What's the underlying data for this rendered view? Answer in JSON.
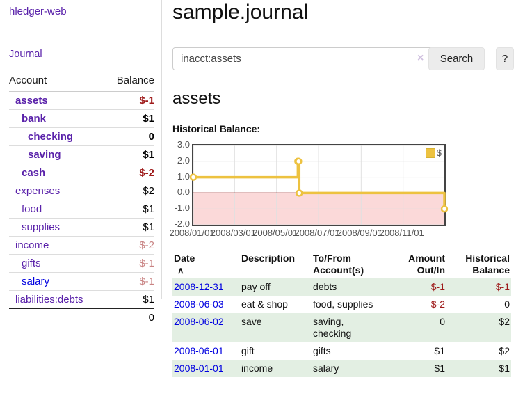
{
  "brand": "hledger-web",
  "nav": {
    "journal_label": "Journal"
  },
  "sidebar": {
    "header": {
      "account": "Account",
      "balance": "Balance"
    },
    "accounts": [
      {
        "name": "assets",
        "level": 1,
        "bold": true,
        "balance": "$-1",
        "tone": "neg",
        "blue": false
      },
      {
        "name": "bank",
        "level": 2,
        "bold": true,
        "balance": "$1",
        "tone": "pos",
        "blue": false
      },
      {
        "name": "checking",
        "level": 3,
        "bold": true,
        "balance": "0",
        "tone": "pos",
        "blue": false
      },
      {
        "name": "saving",
        "level": 3,
        "bold": true,
        "balance": "$1",
        "tone": "pos",
        "blue": false
      },
      {
        "name": "cash",
        "level": 2,
        "bold": true,
        "balance": "$-2",
        "tone": "neg",
        "blue": false
      },
      {
        "name": "expenses",
        "level": 1,
        "bold": false,
        "balance": "$2",
        "tone": "pos",
        "blue": false
      },
      {
        "name": "food",
        "level": 2,
        "bold": false,
        "balance": "$1",
        "tone": "pos",
        "blue": false
      },
      {
        "name": "supplies",
        "level": 2,
        "bold": false,
        "balance": "$1",
        "tone": "pos",
        "blue": false
      },
      {
        "name": "income",
        "level": 1,
        "bold": false,
        "balance": "$-2",
        "tone": "faded",
        "blue": false
      },
      {
        "name": "gifts",
        "level": 2,
        "bold": false,
        "balance": "$-1",
        "tone": "faded",
        "blue": false
      },
      {
        "name": "salary",
        "level": 2,
        "bold": false,
        "balance": "$-1",
        "tone": "faded",
        "blue": true
      },
      {
        "name": "liabilities:debts",
        "level": 1,
        "bold": false,
        "balance": "$1",
        "tone": "pos",
        "blue": false
      }
    ],
    "total": "0"
  },
  "header": {
    "title": "sample.journal"
  },
  "search": {
    "value": "inacct:assets",
    "clear_icon": "×",
    "button_label": "Search",
    "help_label": "?"
  },
  "account_page": {
    "title": "assets",
    "chart_label": "Historical Balance:"
  },
  "chart_data": {
    "type": "line",
    "step": true,
    "title": "Historical Balance:",
    "series": [
      {
        "name": "$",
        "color": "#edc240",
        "points": [
          [
            "2008-01-01",
            1
          ],
          [
            "2008-06-01",
            2
          ],
          [
            "2008-06-02",
            2
          ],
          [
            "2008-06-03",
            0
          ],
          [
            "2008-12-31",
            -1
          ]
        ]
      }
    ],
    "x_ticks": [
      "2008/01/01",
      "2008/03/01",
      "2008/05/01",
      "2008/07/01",
      "2008/09/01",
      "2008/11/01"
    ],
    "y_ticks": [
      -2.0,
      -1.0,
      0.0,
      1.0,
      2.0,
      3.0
    ],
    "ylim": [
      -2,
      3
    ],
    "xrange": [
      "2008-01-01",
      "2008-12-31"
    ],
    "legend": {
      "label": "$",
      "position": "top-right"
    },
    "grid": true,
    "negative_region_fill": "#fbd9d9",
    "zero_line_color": "#8b0000"
  },
  "txn_table": {
    "headers": [
      {
        "line1": "Date",
        "line2": "",
        "align": "left",
        "sort": "∧"
      },
      {
        "line1": "Description",
        "line2": "",
        "align": "left",
        "sort": ""
      },
      {
        "line1": "To/From",
        "line2": "Account(s)",
        "align": "left",
        "sort": ""
      },
      {
        "line1": "Amount",
        "line2": "Out/In",
        "align": "right",
        "sort": ""
      },
      {
        "line1": "Historical",
        "line2": "Balance",
        "align": "right",
        "sort": ""
      }
    ],
    "rows": [
      {
        "date": "2008-12-31",
        "description": "pay off",
        "accounts": "debts",
        "amount": "$-1",
        "amount_neg": true,
        "balance": "$-1",
        "balance_neg": true,
        "shaded": true
      },
      {
        "date": "2008-06-03",
        "description": "eat & shop",
        "accounts": "food, supplies",
        "amount": "$-2",
        "amount_neg": true,
        "balance": "0",
        "balance_neg": false,
        "shaded": false
      },
      {
        "date": "2008-06-02",
        "description": "save",
        "accounts": "saving,\nchecking",
        "amount": "0",
        "amount_neg": false,
        "balance": "$2",
        "balance_neg": false,
        "shaded": true
      },
      {
        "date": "2008-06-01",
        "description": "gift",
        "accounts": "gifts",
        "amount": "$1",
        "amount_neg": false,
        "balance": "$2",
        "balance_neg": false,
        "shaded": false
      },
      {
        "date": "2008-01-01",
        "description": "income",
        "accounts": "salary",
        "amount": "$1",
        "amount_neg": false,
        "balance": "$1",
        "balance_neg": false,
        "shaded": true
      }
    ]
  },
  "colors": {
    "purple_link": "#5a22aa",
    "blue_link": "#0000e0",
    "negative_dark_red": "#9e1a1a",
    "negative_faded_red": "#c98484",
    "row_shade_green": "#e3efe3",
    "chart_gold": "#edc240",
    "chart_border": "#444444"
  }
}
